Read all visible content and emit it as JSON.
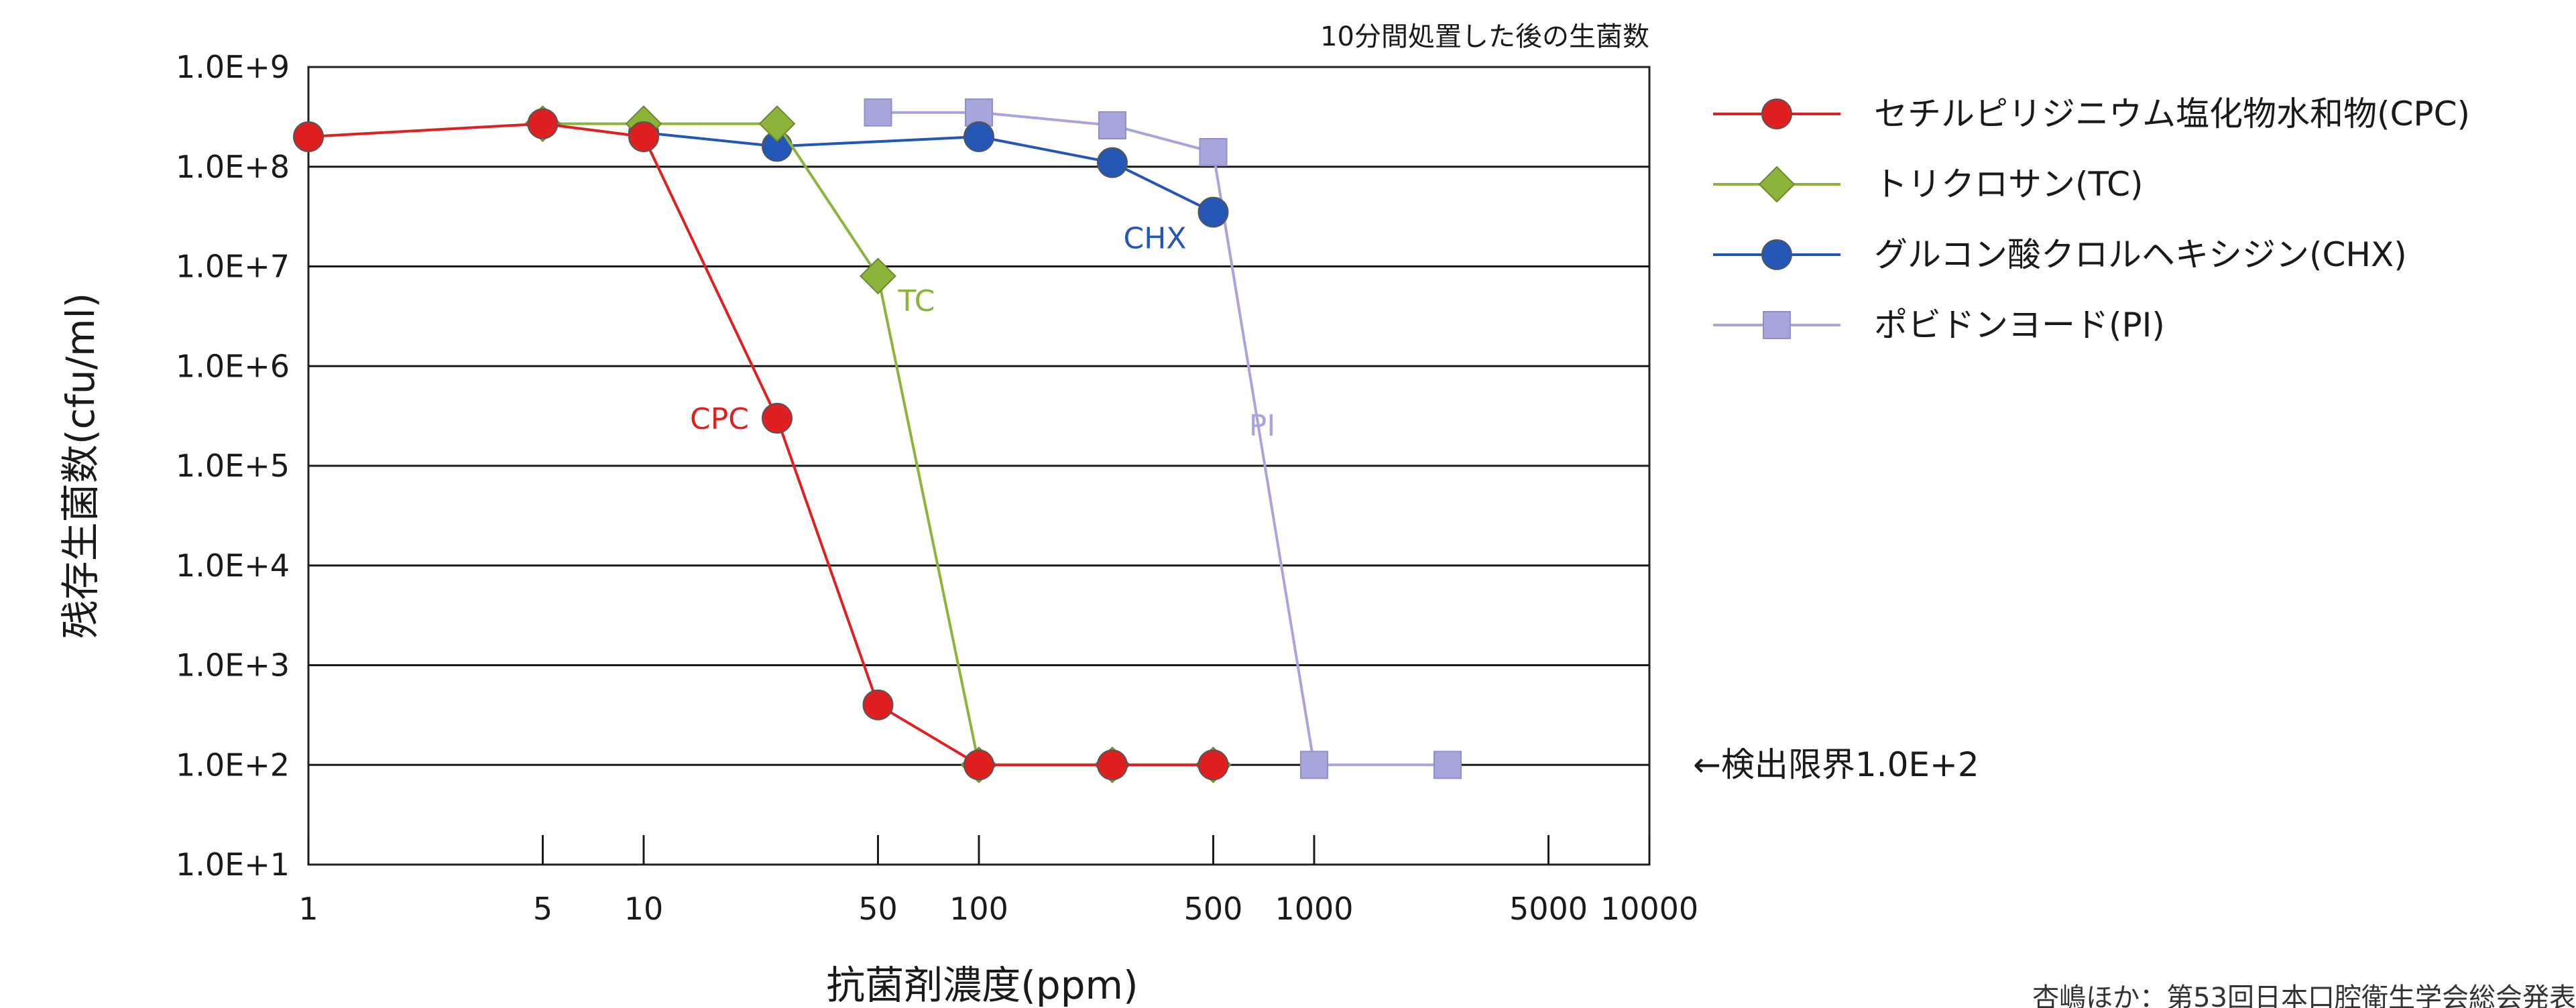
{
  "chart_data": {
    "type": "line",
    "title": "10分間処置した後の生菌数",
    "xlabel": "抗菌剤濃度(ppm)",
    "ylabel": "残存生菌数(cfu/ml)",
    "x_scale": "log",
    "y_scale": "log",
    "x_ticks": [
      1,
      5,
      10,
      50,
      100,
      500,
      1000,
      5000,
      10000
    ],
    "x_tick_labels": [
      "1",
      "5",
      "10",
      "50",
      "100",
      "500",
      "1000",
      "5000",
      "10000"
    ],
    "y_ticks": [
      10,
      100,
      1000,
      10000,
      100000,
      1000000,
      10000000,
      100000000,
      1000000000
    ],
    "y_tick_labels": [
      "1.0E+1",
      "1.0E+2",
      "1.0E+3",
      "1.0E+4",
      "1.0E+5",
      "1.0E+6",
      "1.0E+7",
      "1.0E+8",
      "1.0E+9"
    ],
    "xlim": [
      1,
      10000
    ],
    "ylim": [
      10,
      1000000000
    ],
    "grid": "horizontal",
    "legend_position": "right",
    "series": [
      {
        "name": "セチルピリジニウム塩化物水和物(CPC)",
        "label": "CPC",
        "color": "#e02020",
        "marker": "circle",
        "points": [
          [
            1,
            200000000.0
          ],
          [
            5,
            270000000.0
          ],
          [
            10,
            200000000.0
          ],
          [
            25,
            300000.0
          ],
          [
            50,
            400.0
          ],
          [
            100,
            100.0
          ],
          [
            250,
            100.0
          ],
          [
            500,
            100.0
          ]
        ]
      },
      {
        "name": "トリクロサン(TC)",
        "label": "TC",
        "color": "#8cb33a",
        "marker": "diamond",
        "points": [
          [
            5,
            270000000.0
          ],
          [
            10,
            270000000.0
          ],
          [
            25,
            270000000.0
          ],
          [
            50,
            8000000.0
          ],
          [
            100,
            100.0
          ],
          [
            250,
            100.0
          ],
          [
            500,
            100.0
          ]
        ]
      },
      {
        "name": "グルコン酸クロルヘキシジン(CHX)",
        "label": "CHX",
        "color": "#2457b5",
        "marker": "circle",
        "points": [
          [
            10,
            220000000.0
          ],
          [
            25,
            160000000.0
          ],
          [
            100,
            200000000.0
          ],
          [
            250,
            110000000.0
          ],
          [
            500,
            35000000.0
          ]
        ]
      },
      {
        "name": "ポビドンヨード(PI)",
        "label": "PI",
        "color": "#a6a6dc",
        "marker": "square",
        "points": [
          [
            50,
            350000000.0
          ],
          [
            100,
            350000000.0
          ],
          [
            250,
            260000000.0
          ],
          [
            500,
            140000000.0
          ],
          [
            1000,
            100.0
          ],
          [
            2500,
            100.0
          ]
        ]
      }
    ],
    "annotations": {
      "detection_limit": "←検出限界1.0E+2"
    },
    "footnote": "杏嶋ほか：第53回日本口腔衛生学会総会発表"
  }
}
